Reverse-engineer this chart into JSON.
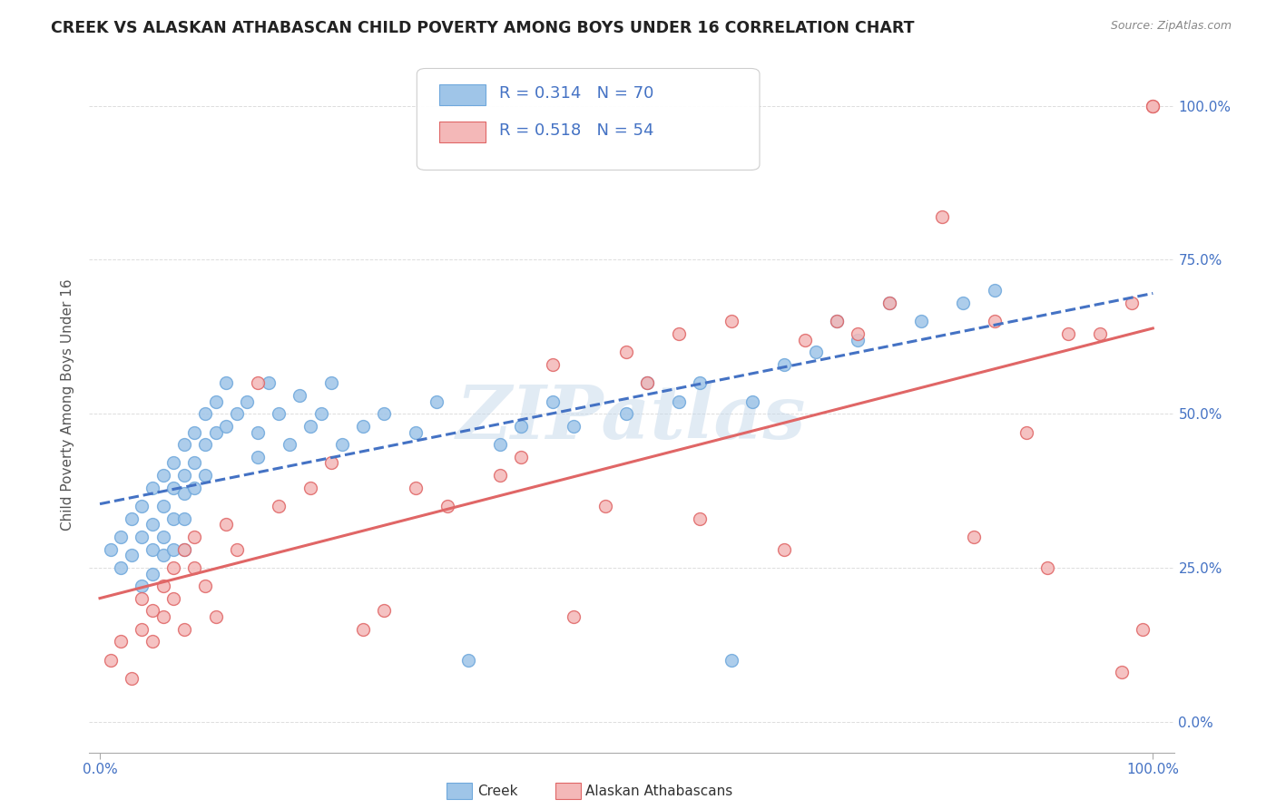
{
  "title": "CREEK VS ALASKAN ATHABASCAN CHILD POVERTY AMONG BOYS UNDER 16 CORRELATION CHART",
  "source": "Source: ZipAtlas.com",
  "ylabel": "Child Poverty Among Boys Under 16",
  "xlim": [
    -0.01,
    1.02
  ],
  "ylim": [
    -0.05,
    1.08
  ],
  "ytick_values": [
    0.0,
    0.25,
    0.5,
    0.75,
    1.0
  ],
  "xtick_values": [
    0.0,
    1.0
  ],
  "xtick_labels_bottom": [
    "0.0%",
    "100.0%"
  ],
  "right_tick_labels": [
    "0.0%",
    "25.0%",
    "50.0%",
    "75.0%",
    "100.0%"
  ],
  "right_tick_color": "#4472c4",
  "creek_color": "#9fc5e8",
  "creek_color_edge": "#6fa8dc",
  "athabascan_color": "#f4b8b8",
  "athabascan_color_edge": "#e06666",
  "creek_trend_color": "#4472c4",
  "athabascan_trend_color": "#e06666",
  "creek_R": "0.314",
  "creek_N": "70",
  "athabascan_R": "0.518",
  "athabascan_N": "54",
  "legend_label_creek": "Creek",
  "legend_label_athabascan": "Alaskan Athabascans",
  "watermark": "ZIPatlas",
  "watermark_color": "#c5d8ea",
  "title_color": "#222222",
  "annotation_color": "#4472c4",
  "background_color": "#ffffff",
  "grid_color": "#dddddd",
  "creek_x": [
    0.01,
    0.02,
    0.02,
    0.03,
    0.03,
    0.04,
    0.04,
    0.04,
    0.05,
    0.05,
    0.05,
    0.05,
    0.06,
    0.06,
    0.06,
    0.06,
    0.07,
    0.07,
    0.07,
    0.07,
    0.08,
    0.08,
    0.08,
    0.08,
    0.08,
    0.09,
    0.09,
    0.09,
    0.1,
    0.1,
    0.1,
    0.11,
    0.11,
    0.12,
    0.12,
    0.13,
    0.14,
    0.15,
    0.15,
    0.16,
    0.17,
    0.18,
    0.19,
    0.2,
    0.21,
    0.22,
    0.23,
    0.25,
    0.27,
    0.3,
    0.32,
    0.35,
    0.38,
    0.4,
    0.43,
    0.45,
    0.5,
    0.52,
    0.55,
    0.57,
    0.6,
    0.62,
    0.65,
    0.68,
    0.7,
    0.72,
    0.75,
    0.78,
    0.82,
    0.85
  ],
  "creek_y": [
    0.28,
    0.3,
    0.25,
    0.33,
    0.27,
    0.35,
    0.3,
    0.22,
    0.32,
    0.38,
    0.28,
    0.24,
    0.4,
    0.35,
    0.3,
    0.27,
    0.42,
    0.38,
    0.33,
    0.28,
    0.45,
    0.4,
    0.37,
    0.33,
    0.28,
    0.47,
    0.42,
    0.38,
    0.5,
    0.45,
    0.4,
    0.52,
    0.47,
    0.55,
    0.48,
    0.5,
    0.52,
    0.47,
    0.43,
    0.55,
    0.5,
    0.45,
    0.53,
    0.48,
    0.5,
    0.55,
    0.45,
    0.48,
    0.5,
    0.47,
    0.52,
    0.1,
    0.45,
    0.48,
    0.52,
    0.48,
    0.5,
    0.55,
    0.52,
    0.55,
    0.1,
    0.52,
    0.58,
    0.6,
    0.65,
    0.62,
    0.68,
    0.65,
    0.68,
    0.7
  ],
  "ath_x": [
    0.01,
    0.02,
    0.03,
    0.04,
    0.04,
    0.05,
    0.05,
    0.06,
    0.06,
    0.07,
    0.07,
    0.08,
    0.08,
    0.09,
    0.09,
    0.1,
    0.11,
    0.12,
    0.13,
    0.15,
    0.17,
    0.2,
    0.22,
    0.25,
    0.27,
    0.3,
    0.33,
    0.38,
    0.4,
    0.43,
    0.45,
    0.48,
    0.5,
    0.52,
    0.55,
    0.57,
    0.6,
    0.65,
    0.67,
    0.7,
    0.72,
    0.75,
    0.8,
    0.83,
    0.85,
    0.88,
    0.9,
    0.92,
    0.95,
    0.97,
    0.98,
    0.99,
    1.0,
    1.0
  ],
  "ath_y": [
    0.1,
    0.13,
    0.07,
    0.15,
    0.2,
    0.18,
    0.13,
    0.22,
    0.17,
    0.25,
    0.2,
    0.28,
    0.15,
    0.3,
    0.25,
    0.22,
    0.17,
    0.32,
    0.28,
    0.55,
    0.35,
    0.38,
    0.42,
    0.15,
    0.18,
    0.38,
    0.35,
    0.4,
    0.43,
    0.58,
    0.17,
    0.35,
    0.6,
    0.55,
    0.63,
    0.33,
    0.65,
    0.28,
    0.62,
    0.65,
    0.63,
    0.68,
    0.82,
    0.3,
    0.65,
    0.47,
    0.25,
    0.63,
    0.63,
    0.08,
    0.68,
    0.15,
    1.0,
    1.0
  ]
}
